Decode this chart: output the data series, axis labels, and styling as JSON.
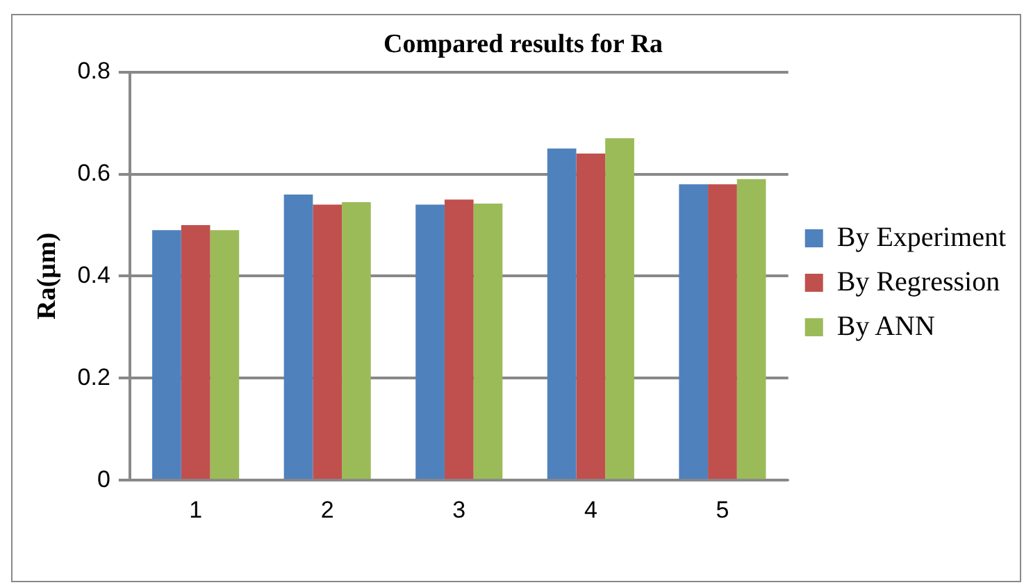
{
  "chart_data": {
    "type": "bar",
    "title": "Compared results for Ra",
    "ylabel": "Ra(µm)",
    "categories": [
      "1",
      "2",
      "3",
      "4",
      "5"
    ],
    "series": [
      {
        "name": "By Experiment",
        "color": "#4f81bd",
        "values": [
          0.49,
          0.56,
          0.54,
          0.65,
          0.58
        ]
      },
      {
        "name": "By Regression",
        "color": "#c0504d",
        "values": [
          0.5,
          0.54,
          0.55,
          0.64,
          0.58
        ]
      },
      {
        "name": "By ANN",
        "color": "#9bbb59",
        "values": [
          0.49,
          0.545,
          0.542,
          0.67,
          0.59
        ]
      }
    ],
    "ylim": [
      0,
      0.8
    ],
    "yticks": [
      0,
      0.2,
      0.4,
      0.6,
      0.8
    ],
    "grid": "y",
    "legend": "right"
  }
}
